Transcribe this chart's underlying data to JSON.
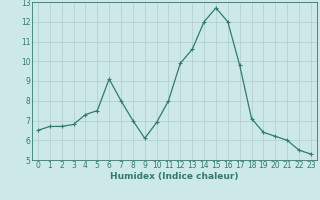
{
  "x": [
    0,
    1,
    2,
    3,
    4,
    5,
    6,
    7,
    8,
    9,
    10,
    11,
    12,
    13,
    14,
    15,
    16,
    17,
    18,
    19,
    20,
    21,
    22,
    23
  ],
  "y": [
    6.5,
    6.7,
    6.7,
    6.8,
    7.3,
    7.5,
    9.1,
    8.0,
    7.0,
    6.1,
    6.9,
    8.0,
    9.9,
    10.6,
    12.0,
    12.7,
    12.0,
    9.8,
    7.1,
    6.4,
    6.2,
    6.0,
    5.5,
    5.3
  ],
  "line_color": "#2e7d6e",
  "marker_color": "#2e7d6e",
  "bg_color": "#cce8e8",
  "grid_color": "#b0cccc",
  "xlabel": "Humidex (Indice chaleur)",
  "xlim": [
    -0.5,
    23.5
  ],
  "ylim": [
    5,
    13
  ],
  "yticks": [
    5,
    6,
    7,
    8,
    9,
    10,
    11,
    12,
    13
  ],
  "xticks": [
    0,
    1,
    2,
    3,
    4,
    5,
    6,
    7,
    8,
    9,
    10,
    11,
    12,
    13,
    14,
    15,
    16,
    17,
    18,
    19,
    20,
    21,
    22,
    23
  ],
  "tick_color": "#2e7d6e",
  "label_fontsize": 6.5,
  "tick_fontsize": 5.5,
  "linewidth": 0.9,
  "markersize": 2.2
}
